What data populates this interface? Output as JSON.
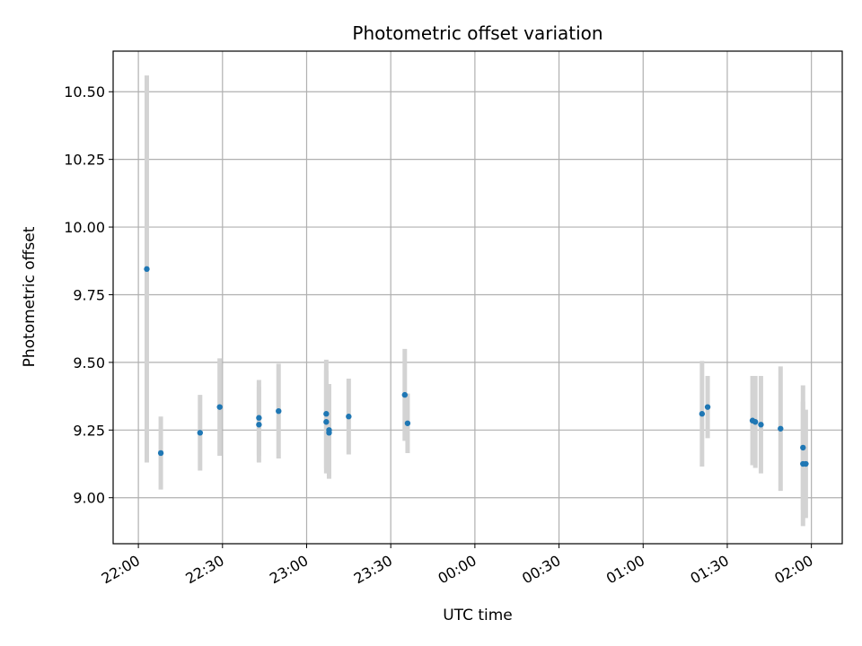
{
  "chart_data": {
    "type": "scatter",
    "title": "Photometric offset variation",
    "xlabel": "UTC time",
    "ylabel": "Photometric offset",
    "x_range_minutes": [
      -9,
      251
    ],
    "ylim": [
      8.83,
      10.65
    ],
    "grid": true,
    "x_ticks": [
      {
        "label": "22:00",
        "minutes": 0
      },
      {
        "label": "22:30",
        "minutes": 30
      },
      {
        "label": "23:00",
        "minutes": 60
      },
      {
        "label": "23:30",
        "minutes": 90
      },
      {
        "label": "00:00",
        "minutes": 120
      },
      {
        "label": "00:30",
        "minutes": 150
      },
      {
        "label": "01:00",
        "minutes": 180
      },
      {
        "label": "01:30",
        "minutes": 210
      },
      {
        "label": "02:00",
        "minutes": 240
      }
    ],
    "y_ticks": [
      {
        "label": "9.00",
        "value": 9.0
      },
      {
        "label": "9.25",
        "value": 9.25
      },
      {
        "label": "9.50",
        "value": 9.5
      },
      {
        "label": "9.75",
        "value": 9.75
      },
      {
        "label": "10.00",
        "value": 10.0
      },
      {
        "label": "10.25",
        "value": 10.25
      },
      {
        "label": "10.50",
        "value": 10.5
      }
    ],
    "marker_color": "#1f77b4",
    "errorbar_color": "#d3d3d3",
    "points": [
      {
        "time": "22:03",
        "y": 9.845,
        "err": 0.715
      },
      {
        "time": "22:08",
        "y": 9.165,
        "err": 0.135
      },
      {
        "time": "22:22",
        "y": 9.24,
        "err": 0.14
      },
      {
        "time": "22:29",
        "y": 9.335,
        "err": 0.18
      },
      {
        "time": "22:43",
        "y": 9.295,
        "err": 0.14
      },
      {
        "time": "22:43",
        "y": 9.27,
        "err": 0.14
      },
      {
        "time": "22:50",
        "y": 9.32,
        "err": 0.175
      },
      {
        "time": "23:07",
        "y": 9.31,
        "err": 0.2
      },
      {
        "time": "23:07",
        "y": 9.28,
        "err": 0.19
      },
      {
        "time": "23:08",
        "y": 9.25,
        "err": 0.17
      },
      {
        "time": "23:08",
        "y": 9.24,
        "err": 0.17
      },
      {
        "time": "23:15",
        "y": 9.3,
        "err": 0.14
      },
      {
        "time": "23:35",
        "y": 9.38,
        "err": 0.17
      },
      {
        "time": "23:36",
        "y": 9.275,
        "err": 0.11
      },
      {
        "time": "01:21",
        "y": 9.31,
        "err": 0.195
      },
      {
        "time": "01:23",
        "y": 9.335,
        "err": 0.115
      },
      {
        "time": "01:39",
        "y": 9.285,
        "err": 0.165
      },
      {
        "time": "01:40",
        "y": 9.28,
        "err": 0.17
      },
      {
        "time": "01:42",
        "y": 9.27,
        "err": 0.18
      },
      {
        "time": "01:49",
        "y": 9.255,
        "err": 0.23
      },
      {
        "time": "01:57",
        "y": 9.185,
        "err": 0.23
      },
      {
        "time": "01:57",
        "y": 9.125,
        "err": 0.23
      },
      {
        "time": "01:58",
        "y": 9.125,
        "err": 0.2
      }
    ]
  }
}
